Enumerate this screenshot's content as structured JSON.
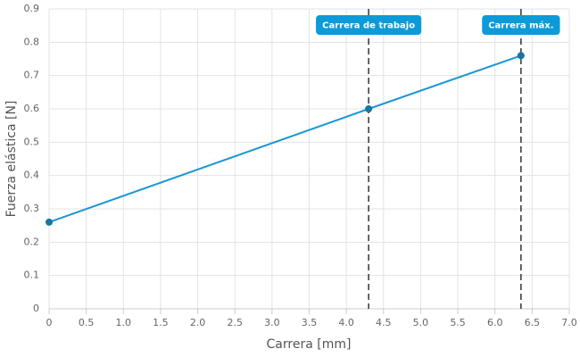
{
  "chart_data": {
    "type": "line",
    "xlabel": "Carrera [mm]",
    "ylabel": "Fuerza elástica [N]",
    "x": [
      0,
      4.3,
      6.35
    ],
    "series": [
      {
        "name": "Fuerza",
        "color": "#1a96d4",
        "values": [
          0.26,
          0.6,
          0.76
        ]
      }
    ],
    "xlim": [
      0,
      7
    ],
    "ylim": [
      0,
      0.9
    ],
    "xticks": [
      0,
      0.5,
      {
        "value": 1,
        "label": "1.0"
      },
      1.5,
      {
        "value": 2,
        "label": "2.0"
      },
      2.5,
      {
        "value": 3,
        "label": "3.0"
      },
      3.5,
      {
        "value": 4,
        "label": "4.0"
      },
      4.5,
      {
        "value": 5,
        "label": "5.0"
      },
      5.5,
      {
        "value": 6,
        "label": "6.0"
      },
      6.5,
      {
        "value": 7,
        "label": "7.0"
      }
    ],
    "yticks": [
      0,
      0.1,
      0.2,
      0.3,
      0.4,
      0.5,
      0.6,
      0.7,
      0.8,
      0.9
    ],
    "grid": true,
    "annotations": [
      {
        "x": 4.3,
        "label": "Carrera de trabajo"
      },
      {
        "x": 6.35,
        "label": "Carrera máx."
      }
    ]
  }
}
